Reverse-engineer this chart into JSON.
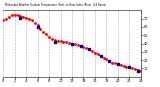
{
  "background_color": "#ffffff",
  "grid_color": "#888888",
  "red_x": [
    0,
    0.5,
    1,
    1.5,
    2,
    2.5,
    3,
    3.5,
    4,
    4.5,
    5,
    5.5,
    6,
    6.5,
    7,
    7.5,
    8,
    8.5,
    9,
    9.5,
    10,
    10.5,
    11,
    11.5,
    12,
    12.5,
    13,
    13.5,
    14,
    14.5,
    15,
    15.5,
    16,
    16.5,
    17,
    17.5,
    18,
    18.5,
    19,
    19.5,
    20,
    20.5,
    21,
    21.5,
    22,
    22.5,
    23,
    23.5,
    24
  ],
  "red_y": [
    68,
    70,
    72,
    74,
    75,
    74,
    73,
    72,
    71,
    70,
    68,
    65,
    62,
    58,
    54,
    51,
    48,
    46,
    44,
    43,
    43,
    42,
    42,
    41,
    40,
    39,
    38,
    37,
    36,
    35,
    33,
    31,
    29,
    27,
    25,
    23,
    21,
    19,
    17,
    16,
    15,
    14,
    13,
    12,
    11,
    10,
    9,
    8,
    7
  ],
  "blue_x": [
    3,
    6,
    9,
    12,
    13.5,
    15,
    17,
    18.5,
    20,
    22,
    23.5
  ],
  "blue_y": [
    71,
    60,
    42,
    40,
    37,
    33,
    25,
    19,
    15,
    11,
    7
  ],
  "ylim": [
    0,
    80
  ],
  "xlim": [
    0,
    24
  ],
  "ytick_values": [
    10,
    20,
    30,
    40,
    50,
    60,
    70
  ],
  "xtick_values": [
    0,
    2,
    4,
    6,
    8,
    10,
    12,
    14,
    16,
    18,
    20,
    22,
    24
  ],
  "red_color": "#ff0000",
  "blue_color": "#000099",
  "title_color": "#000000"
}
